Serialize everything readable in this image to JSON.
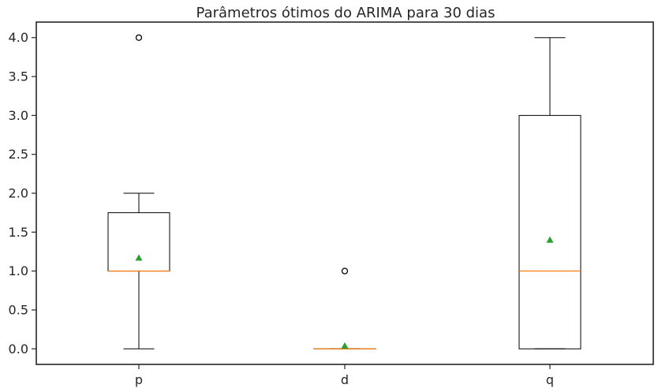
{
  "chart_data": {
    "type": "box",
    "title": "Parâmetros ótimos do ARIMA para 30 dias",
    "xlabel": "",
    "ylabel": "",
    "categories": [
      "p",
      "d",
      "q"
    ],
    "ylim": [
      -0.2,
      4.2
    ],
    "yticks": [
      "0.0",
      "0.5",
      "1.0",
      "1.5",
      "2.0",
      "2.5",
      "3.0",
      "3.5",
      "4.0"
    ],
    "grid": false,
    "boxes": [
      {
        "name": "p",
        "whisker_low": 0.0,
        "q1": 1.0,
        "median": 1.0,
        "q3": 1.75,
        "whisker_high": 2.0,
        "mean": 1.17,
        "outliers": [
          4.0
        ]
      },
      {
        "name": "d",
        "whisker_low": 0.0,
        "q1": 0.0,
        "median": 0.0,
        "q3": 0.0,
        "whisker_high": 0.0,
        "mean": 0.04,
        "outliers": [
          1.0
        ]
      },
      {
        "name": "q",
        "whisker_low": 0.0,
        "q1": 0.0,
        "median": 1.0,
        "q3": 3.0,
        "whisker_high": 4.0,
        "mean": 1.4,
        "outliers": []
      }
    ],
    "colors": {
      "box": "#000000",
      "median": "#ff7f0e",
      "mean": "#2ca02c",
      "axes": "#262626"
    }
  }
}
